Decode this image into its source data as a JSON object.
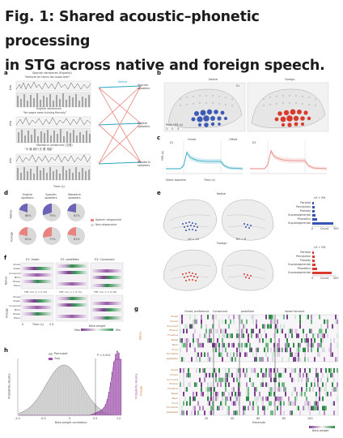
{
  "caption": {
    "line1": "Fig. 1: Shared acoustic–phonetic processing",
    "line2": "in STG across native and foreign speech."
  },
  "panel_letters": [
    "a",
    "b",
    "c",
    "d",
    "e",
    "f",
    "g",
    "h"
  ],
  "panel_a": {
    "group_labels": [
      "Spanish sentences (Español)",
      "English sentences",
      "Mandarin sentences (汉语)"
    ],
    "example_words": [
      "“tiempre fa fuerro las cosas bien”",
      "“He   sagre     seen turning    fiercely”",
      "“今 晚   我们   去   看   电影”"
    ],
    "axis_labels": [
      "kHz",
      "kHz",
      "kHz",
      "Time (s)"
    ],
    "right_labels": [
      "Native",
      "Spanish speakers",
      "English speakers",
      "Mandarin speakers"
    ]
  },
  "panel_b": {
    "labels": [
      "Native",
      "Foreign"
    ],
    "legend": [
      "Peak HFA (z)",
      "1",
      "2",
      "3",
      "E1"
    ]
  },
  "panel_c": {
    "labels": [
      "Onset",
      "Offset",
      "Time (s)",
      "E1",
      "E2",
      "HFA (z)",
      "Silent baseline"
    ]
  },
  "panel_d": {
    "column_labels": [
      "English speakers",
      "Spanish speakers",
      "Mandarin speakers"
    ],
    "row_labels": [
      "Native",
      "Foreign"
    ],
    "percents": [
      "86%",
      "75%",
      "81%",
      "81%",
      "77%",
      "81%"
    ],
    "legend": [
      "Speech responsive",
      "Non-responsive"
    ],
    "colors": {
      "native": "#6b63b5",
      "foreign": "#e8837f",
      "nonresponsive": "#d9d9d9"
    }
  },
  "panel_e": {
    "row_labels": [
      "Native",
      "Foreign"
    ],
    "stats": [
      "LH = 14",
      "RH = 6"
    ],
    "bar_title": "LH + RH",
    "bar_categories": [
      "Parietal",
      "Perception",
      "Prosody",
      "Suprasegmental",
      "Phonetics",
      "Suprasegmental"
    ],
    "bar_axis": [
      "0",
      "Count",
      "500"
    ],
    "colors": {
      "native": "#3552b5",
      "foreign": "#d93a2b"
    }
  },
  "panel_f": {
    "column_titles": [
      "E1: Vowel",
      "E2: peakRate",
      "E3: Consonant"
    ],
    "row_labels": [
      "Native",
      "Foreign"
    ],
    "features": [
      "Onset",
      "Vowel",
      "Consonant",
      "Pitch",
      "Stress",
      "Place"
    ],
    "corr_labels": [
      "TRF corr (r = 0.79)",
      "TRF corr (r = 0.71)",
      "TRF corr (r = 0.78)"
    ],
    "axis": [
      "0",
      "Time (s)",
      "0.4"
    ],
    "legend": [
      "Beta weight",
      "Max",
      "Min"
    ]
  },
  "panel_g": {
    "column_groups": [
      "Onset, preference",
      "Consonant",
      "peakRate",
      "Vowel formant"
    ],
    "row_labels": [
      "Native",
      "Foreign"
    ],
    "row_features": [
      "Onset",
      "Voiced",
      "Sonorant",
      "Plosive",
      "Fricative",
      "Nasal",
      "Back",
      "Front",
      "Formants",
      "peakRate"
    ],
    "x_axis_title": "Electrode",
    "x_ticks": [
      "20",
      "40",
      "60",
      "80",
      "100"
    ],
    "legend": "Beta weight"
  },
  "panel_h": {
    "legend": [
      "Permuted",
      "True"
    ],
    "x_axis_title": "Beta weight correlation",
    "y_axis_title": "Probability density",
    "x_ticks": [
      "-1.0",
      "-0.5",
      "0",
      "0.5",
      "1.0"
    ],
    "annotation": "P < 0.001",
    "colors": {
      "permuted": "#c8c8c8",
      "true": "#9b4aa8"
    }
  }
}
